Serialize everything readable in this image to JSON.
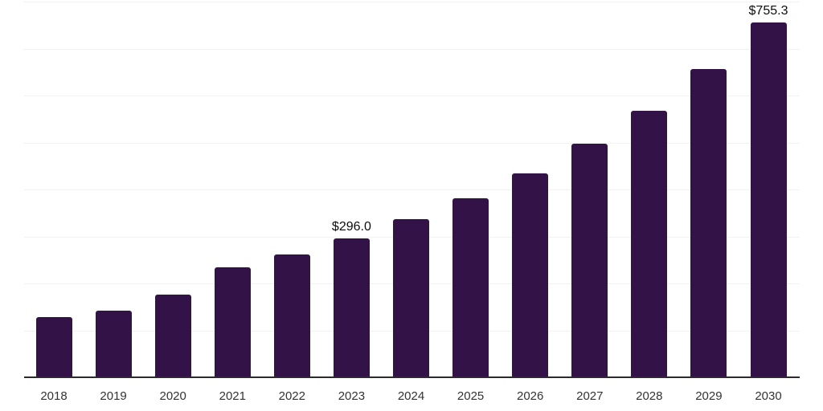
{
  "chart_data": {
    "type": "bar",
    "title": "",
    "xlabel": "",
    "ylabel": "",
    "categories": [
      "2018",
      "2019",
      "2020",
      "2021",
      "2022",
      "2023",
      "2024",
      "2025",
      "2026",
      "2027",
      "2028",
      "2029",
      "2030"
    ],
    "values": [
      128,
      142,
      176,
      234,
      262,
      296.0,
      337,
      381,
      434,
      497,
      568,
      656,
      755.3
    ],
    "value_labels": {
      "2023": "$296.0",
      "2030": "$755.3"
    },
    "ylim": [
      0,
      800
    ],
    "grid_step": 100,
    "grid": "horizontal-only",
    "y_tick_labels_visible": false,
    "legend": "none",
    "colors": {
      "bar": "#331247",
      "axis": "#2b2b2b",
      "gridline": "#f2f2f4",
      "tick_label": "#333333",
      "value_label": "#0d0d0d"
    }
  }
}
